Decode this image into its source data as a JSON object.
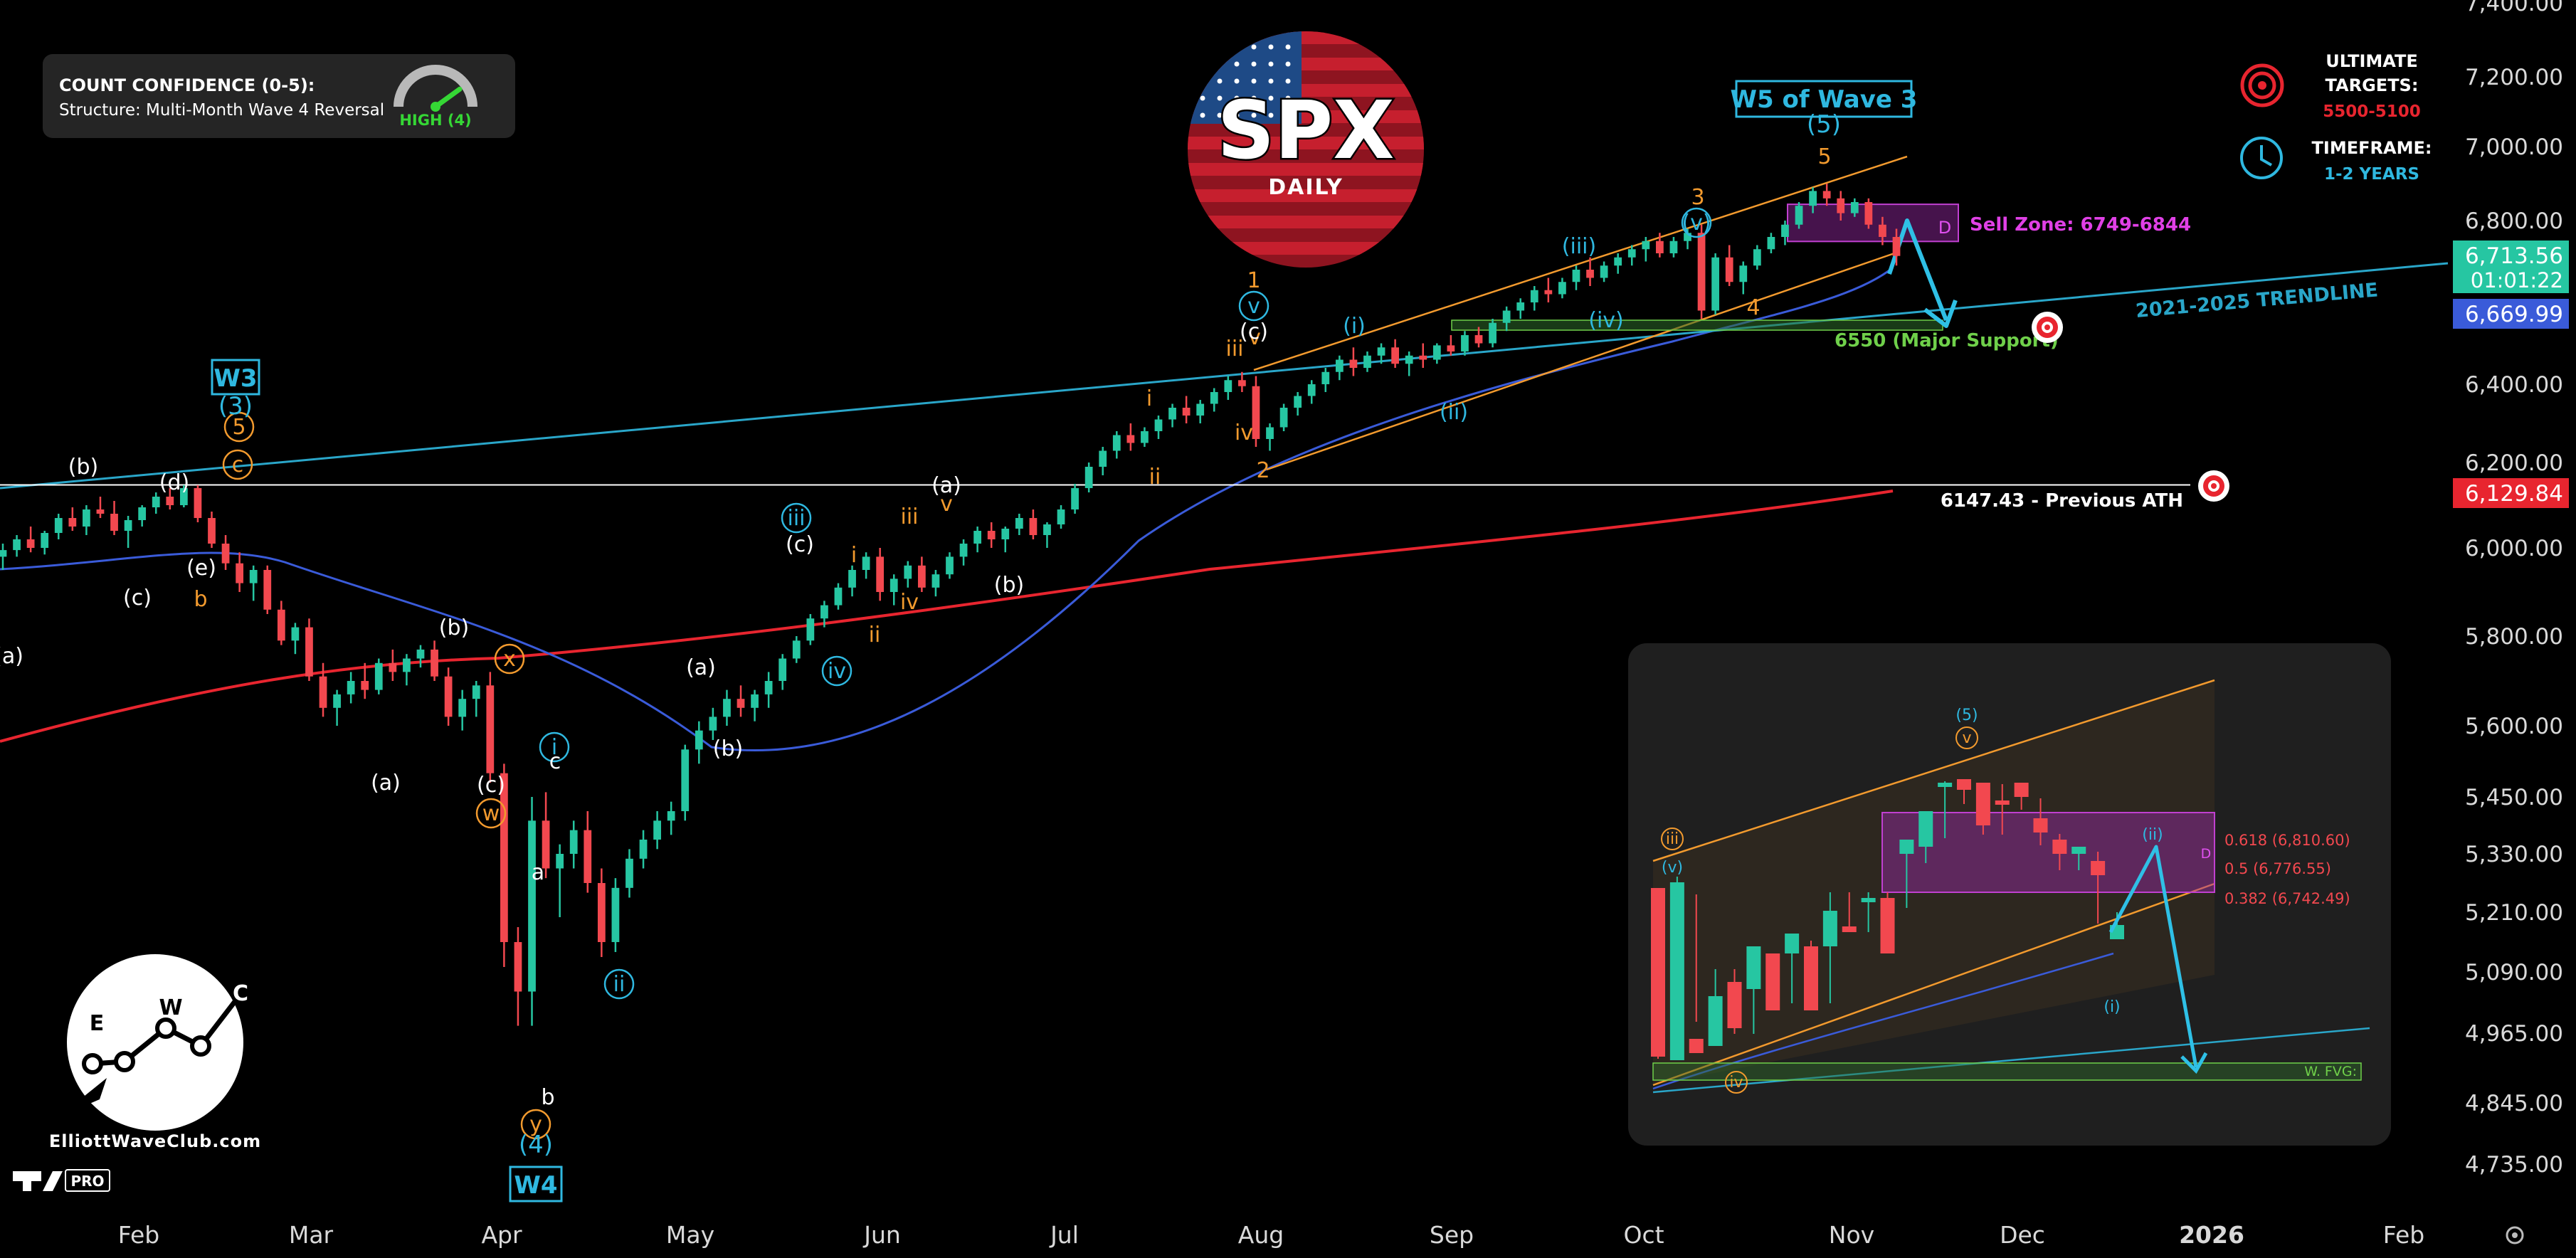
{
  "colors": {
    "background": "#000000",
    "bull": "#26c6a2",
    "bear": "#f2484f",
    "ma_red": "#e8252f",
    "ma_blue": "#3a5bd9",
    "trendline": "#2aa6c9",
    "channel": "#f29a2e",
    "sell_zone": "#9c2aa8",
    "support": "#6fd04a",
    "white": "#ffffff"
  },
  "confidence_box": {
    "title": "COUNT CONFIDENCE (0-5):",
    "subtitle": "Structure: Multi-Month Wave 4 Reversal",
    "gauge_label": "HIGH (4)",
    "gauge_value": 4,
    "gauge_max": 5
  },
  "logo": {
    "ticker": "SPX",
    "timeframe": "DAILY"
  },
  "targets": {
    "ultimate_label_1": "ULTIMATE",
    "ultimate_label_2": "TARGETS:",
    "ultimate_value": "5500-5100",
    "timeframe_label": "TIMEFRAME:",
    "timeframe_value": "1-2 YEARS",
    "target_icon": "target-icon",
    "clock_icon": "clock-icon"
  },
  "brand": {
    "site": "ElliottWaveClub.com",
    "letters": [
      "E",
      "W",
      "C"
    ],
    "tv_badge": "PRO"
  },
  "price_boxes": [
    {
      "value": "6,713.56",
      "sub": "01:01:22",
      "color": "#26c6a2",
      "price": 6713.56
    },
    {
      "value": "6,669.99",
      "color": "#3a5bd9",
      "price": 6669.99
    },
    {
      "value": "6,129.84",
      "color": "#e8252f",
      "price": 6129.84
    }
  ],
  "chart_data": {
    "type": "candlestick",
    "title": "SPX",
    "y_axis": {
      "ticks": [
        {
          "label": "7,400.00",
          "v": 7400
        },
        {
          "label": "7,200.00",
          "v": 7200
        },
        {
          "label": "7,000.00",
          "v": 7000
        },
        {
          "label": "6,800.00",
          "v": 6800
        },
        {
          "label": "6,400.00",
          "v": 6400
        },
        {
          "label": "6,200.00",
          "v": 6200
        },
        {
          "label": "6,000.00",
          "v": 6000
        },
        {
          "label": "5,800.00",
          "v": 5800
        },
        {
          "label": "5,600.00",
          "v": 5600
        },
        {
          "label": "5,450.00",
          "v": 5450
        },
        {
          "label": "5,330.00",
          "v": 5330
        },
        {
          "label": "5,210.00",
          "v": 5210
        },
        {
          "label": "5,090.00",
          "v": 5090
        },
        {
          "label": "4,965.00",
          "v": 4965
        },
        {
          "label": "4,845.00",
          "v": 4845
        },
        {
          "label": "4,735.00",
          "v": 4735
        }
      ]
    },
    "x_axis": {
      "ticks": [
        {
          "label": "Feb",
          "x": 2025.09
        },
        {
          "label": "Mar",
          "x": 2025.16
        },
        {
          "label": "Apr",
          "x": 2025.25
        },
        {
          "label": "May",
          "x": 2025.33
        },
        {
          "label": "Jun",
          "x": 2025.42
        },
        {
          "label": "Jul",
          "x": 2025.5
        },
        {
          "label": "Aug",
          "x": 2025.58
        },
        {
          "label": "Sep",
          "x": 2025.67
        },
        {
          "label": "Oct",
          "x": 2025.75
        },
        {
          "label": "Nov",
          "x": 2025.84
        },
        {
          "label": "Dec",
          "x": 2025.92
        },
        {
          "label": "2026",
          "x": 2026.0,
          "bold": true
        },
        {
          "label": "Feb",
          "x": 2026.09
        }
      ]
    },
    "levels": [
      {
        "name": "previous-ath",
        "label": "6147.43 - Previous ATH",
        "value": 6147.43
      },
      {
        "name": "major-support",
        "label": "6550 (Major Support)",
        "value": 6550
      }
    ],
    "sell_zone": {
      "label": "Sell Zone: 6749-6844",
      "letter": "D",
      "low": 6749,
      "high": 6844
    },
    "trendline_label": "2021-2025 TRENDLINE",
    "major_labels": [
      {
        "text": "W3",
        "sub": "(3)",
        "kind": "box"
      },
      {
        "text": "W4",
        "sub": "(4)",
        "kind": "box"
      },
      {
        "text": "W5 of Wave 3",
        "sub": "(5)",
        "kind": "box"
      }
    ],
    "wave_labels": [
      {
        "t": "(a)",
        "c": "w"
      },
      {
        "t": "(b)",
        "c": "w"
      },
      {
        "t": "(c)",
        "c": "w"
      },
      {
        "t": "(d)",
        "c": "w"
      },
      {
        "t": "(e)",
        "c": "w"
      },
      {
        "t": "b",
        "c": "o"
      },
      {
        "t": "5",
        "c": "o"
      },
      {
        "t": "c",
        "c": "o"
      },
      {
        "t": "(b)",
        "c": "w"
      },
      {
        "t": "x",
        "c": "o"
      },
      {
        "t": "(a)",
        "c": "w"
      },
      {
        "t": "(c)",
        "c": "w"
      },
      {
        "t": "w",
        "c": "o"
      },
      {
        "t": "i",
        "c": "c"
      },
      {
        "t": "c",
        "c": "w"
      },
      {
        "t": "a",
        "c": "w"
      },
      {
        "t": "b",
        "c": "w"
      },
      {
        "t": "y",
        "c": "o"
      },
      {
        "t": "ii",
        "c": "c"
      },
      {
        "t": "(a)",
        "c": "w"
      },
      {
        "t": "(b)",
        "c": "w"
      },
      {
        "t": "iii",
        "c": "c"
      },
      {
        "t": "(c)",
        "c": "w"
      },
      {
        "t": "iv",
        "c": "c"
      },
      {
        "t": "i",
        "c": "o"
      },
      {
        "t": "ii",
        "c": "o"
      },
      {
        "t": "iii",
        "c": "o"
      },
      {
        "t": "iv",
        "c": "o"
      },
      {
        "t": "v",
        "c": "o"
      },
      {
        "t": "(a)",
        "c": "w"
      },
      {
        "t": "(b)",
        "c": "w"
      },
      {
        "t": "i",
        "c": "o"
      },
      {
        "t": "ii",
        "c": "o"
      },
      {
        "t": "iii",
        "c": "o"
      },
      {
        "t": "iv",
        "c": "o"
      },
      {
        "t": "v",
        "c": "o"
      },
      {
        "t": "(c)",
        "c": "w"
      },
      {
        "t": "v",
        "c": "c"
      },
      {
        "t": "1",
        "c": "o"
      },
      {
        "t": "2",
        "c": "o"
      },
      {
        "t": "(i)",
        "c": "c"
      },
      {
        "t": "(ii)",
        "c": "c"
      },
      {
        "t": "(iii)",
        "c": "c"
      },
      {
        "t": "(iv)",
        "c": "c"
      },
      {
        "t": "(v)",
        "c": "c"
      },
      {
        "t": "3",
        "c": "o"
      },
      {
        "t": "4",
        "c": "o"
      },
      {
        "t": "5",
        "c": "o"
      }
    ],
    "inset": {
      "fib_levels": [
        {
          "label": "0.618 (6,810.60)",
          "value": 6810.6
        },
        {
          "label": "0.5 (6,776.55)",
          "value": 6776.55
        },
        {
          "label": "0.382 (6,742.49)",
          "value": 6742.49
        }
      ],
      "letter": "D",
      "fvg_label": "W. FVG:",
      "wave_labels": [
        {
          "t": "(5)",
          "c": "c"
        },
        {
          "t": "v",
          "c": "o"
        },
        {
          "t": "iii",
          "c": "o"
        },
        {
          "t": "(v)",
          "c": "c"
        },
        {
          "t": "iv",
          "c": "o"
        },
        {
          "t": "(ii)",
          "c": "c"
        },
        {
          "t": "(i)",
          "c": "c"
        }
      ]
    },
    "candles": [
      [
        5980,
        6010,
        5950,
        5995
      ],
      [
        5995,
        6030,
        5980,
        6020
      ],
      [
        6020,
        6050,
        5990,
        6000
      ],
      [
        6000,
        6040,
        5985,
        6035
      ],
      [
        6035,
        6080,
        6020,
        6070
      ],
      [
        6070,
        6095,
        6040,
        6050
      ],
      [
        6050,
        6100,
        6030,
        6090
      ],
      [
        6090,
        6120,
        6070,
        6080
      ],
      [
        6080,
        6110,
        6030,
        6040
      ],
      [
        6040,
        6075,
        6000,
        6065
      ],
      [
        6065,
        6100,
        6050,
        6095
      ],
      [
        6095,
        6130,
        6080,
        6120
      ],
      [
        6120,
        6140,
        6090,
        6100
      ],
      [
        6100,
        6147,
        6095,
        6140
      ],
      [
        6140,
        6147,
        6060,
        6070
      ],
      [
        6070,
        6085,
        6000,
        6010
      ],
      [
        6010,
        6030,
        5950,
        5965
      ],
      [
        5965,
        5990,
        5900,
        5920
      ],
      [
        5920,
        5960,
        5880,
        5950
      ],
      [
        5950,
        5960,
        5850,
        5860
      ],
      [
        5860,
        5880,
        5780,
        5790
      ],
      [
        5790,
        5830,
        5760,
        5820
      ],
      [
        5820,
        5840,
        5700,
        5710
      ],
      [
        5710,
        5740,
        5620,
        5640
      ],
      [
        5640,
        5680,
        5600,
        5670
      ],
      [
        5670,
        5720,
        5650,
        5700
      ],
      [
        5700,
        5740,
        5660,
        5680
      ],
      [
        5680,
        5750,
        5670,
        5740
      ],
      [
        5740,
        5770,
        5700,
        5720
      ],
      [
        5720,
        5760,
        5690,
        5750
      ],
      [
        5750,
        5780,
        5730,
        5770
      ],
      [
        5770,
        5790,
        5700,
        5710
      ],
      [
        5710,
        5730,
        5600,
        5620
      ],
      [
        5620,
        5680,
        5590,
        5660
      ],
      [
        5660,
        5700,
        5620,
        5690
      ],
      [
        5690,
        5720,
        5480,
        5500
      ],
      [
        5500,
        5520,
        5100,
        5150
      ],
      [
        5150,
        5180,
        4980,
        5050
      ],
      [
        5050,
        5450,
        4980,
        5400
      ],
      [
        5400,
        5460,
        5280,
        5300
      ],
      [
        5300,
        5350,
        5200,
        5330
      ],
      [
        5330,
        5400,
        5300,
        5380
      ],
      [
        5380,
        5420,
        5250,
        5270
      ],
      [
        5270,
        5300,
        5120,
        5150
      ],
      [
        5150,
        5280,
        5130,
        5260
      ],
      [
        5260,
        5340,
        5240,
        5320
      ],
      [
        5320,
        5380,
        5300,
        5360
      ],
      [
        5360,
        5420,
        5340,
        5400
      ],
      [
        5400,
        5440,
        5370,
        5420
      ],
      [
        5420,
        5560,
        5400,
        5550
      ],
      [
        5550,
        5610,
        5520,
        5590
      ],
      [
        5590,
        5640,
        5570,
        5620
      ],
      [
        5620,
        5680,
        5600,
        5660
      ],
      [
        5660,
        5690,
        5620,
        5640
      ],
      [
        5640,
        5680,
        5610,
        5670
      ],
      [
        5670,
        5720,
        5640,
        5700
      ],
      [
        5700,
        5760,
        5680,
        5750
      ],
      [
        5750,
        5800,
        5740,
        5790
      ],
      [
        5790,
        5850,
        5780,
        5840
      ],
      [
        5840,
        5880,
        5820,
        5870
      ],
      [
        5870,
        5920,
        5860,
        5910
      ],
      [
        5910,
        5960,
        5890,
        5950
      ],
      [
        5950,
        5990,
        5930,
        5980
      ],
      [
        5980,
        6000,
        5880,
        5900
      ],
      [
        5900,
        5940,
        5870,
        5930
      ],
      [
        5930,
        5970,
        5910,
        5960
      ],
      [
        5960,
        5980,
        5900,
        5910
      ],
      [
        5910,
        5950,
        5890,
        5940
      ],
      [
        5940,
        5990,
        5930,
        5980
      ],
      [
        5980,
        6020,
        5960,
        6010
      ],
      [
        6010,
        6050,
        5990,
        6040
      ],
      [
        6040,
        6060,
        6000,
        6020
      ],
      [
        6020,
        6050,
        5990,
        6045
      ],
      [
        6045,
        6080,
        6030,
        6070
      ],
      [
        6070,
        6090,
        6020,
        6030
      ],
      [
        6030,
        6060,
        6000,
        6055
      ],
      [
        6055,
        6100,
        6045,
        6090
      ],
      [
        6090,
        6150,
        6080,
        6140
      ],
      [
        6140,
        6200,
        6130,
        6190
      ],
      [
        6190,
        6240,
        6170,
        6230
      ],
      [
        6230,
        6280,
        6210,
        6270
      ],
      [
        6270,
        6300,
        6230,
        6250
      ],
      [
        6250,
        6290,
        6240,
        6280
      ],
      [
        6280,
        6320,
        6260,
        6310
      ],
      [
        6310,
        6350,
        6290,
        6340
      ],
      [
        6340,
        6370,
        6300,
        6320
      ],
      [
        6320,
        6360,
        6300,
        6350
      ],
      [
        6350,
        6390,
        6330,
        6380
      ],
      [
        6380,
        6420,
        6360,
        6410
      ],
      [
        6410,
        6430,
        6380,
        6395
      ],
      [
        6395,
        6420,
        6240,
        6260
      ],
      [
        6260,
        6300,
        6230,
        6290
      ],
      [
        6290,
        6350,
        6280,
        6340
      ],
      [
        6340,
        6380,
        6320,
        6370
      ],
      [
        6370,
        6410,
        6350,
        6400
      ],
      [
        6400,
        6440,
        6380,
        6430
      ],
      [
        6430,
        6470,
        6410,
        6460
      ],
      [
        6460,
        6490,
        6420,
        6440
      ],
      [
        6440,
        6480,
        6430,
        6470
      ],
      [
        6470,
        6500,
        6450,
        6490
      ],
      [
        6490,
        6510,
        6440,
        6450
      ],
      [
        6450,
        6480,
        6420,
        6470
      ],
      [
        6470,
        6500,
        6440,
        6460
      ],
      [
        6460,
        6500,
        6450,
        6495
      ],
      [
        6495,
        6520,
        6470,
        6480
      ],
      [
        6480,
        6530,
        6470,
        6520
      ],
      [
        6520,
        6540,
        6490,
        6500
      ],
      [
        6500,
        6560,
        6490,
        6550
      ],
      [
        6550,
        6590,
        6530,
        6580
      ],
      [
        6580,
        6610,
        6560,
        6600
      ],
      [
        6600,
        6640,
        6580,
        6630
      ],
      [
        6630,
        6660,
        6600,
        6620
      ],
      [
        6620,
        6660,
        6610,
        6650
      ],
      [
        6650,
        6690,
        6630,
        6680
      ],
      [
        6680,
        6710,
        6640,
        6660
      ],
      [
        6660,
        6700,
        6650,
        6690
      ],
      [
        6690,
        6720,
        6670,
        6710
      ],
      [
        6710,
        6740,
        6690,
        6730
      ],
      [
        6730,
        6760,
        6700,
        6750
      ],
      [
        6750,
        6770,
        6710,
        6720
      ],
      [
        6720,
        6760,
        6710,
        6750
      ],
      [
        6750,
        6780,
        6730,
        6770
      ],
      [
        6770,
        6790,
        6560,
        6580
      ],
      [
        6580,
        6720,
        6570,
        6710
      ],
      [
        6710,
        6740,
        6640,
        6650
      ],
      [
        6650,
        6700,
        6620,
        6690
      ],
      [
        6690,
        6740,
        6680,
        6730
      ],
      [
        6730,
        6770,
        6720,
        6760
      ],
      [
        6760,
        6800,
        6740,
        6790
      ],
      [
        6790,
        6850,
        6780,
        6840
      ],
      [
        6840,
        6890,
        6820,
        6880
      ],
      [
        6880,
        6900,
        6840,
        6860
      ],
      [
        6860,
        6880,
        6800,
        6820
      ],
      [
        6820,
        6860,
        6810,
        6850
      ],
      [
        6850,
        6860,
        6780,
        6790
      ],
      [
        6790,
        6810,
        6740,
        6760
      ],
      [
        6760,
        6780,
        6690,
        6713.56
      ]
    ]
  }
}
